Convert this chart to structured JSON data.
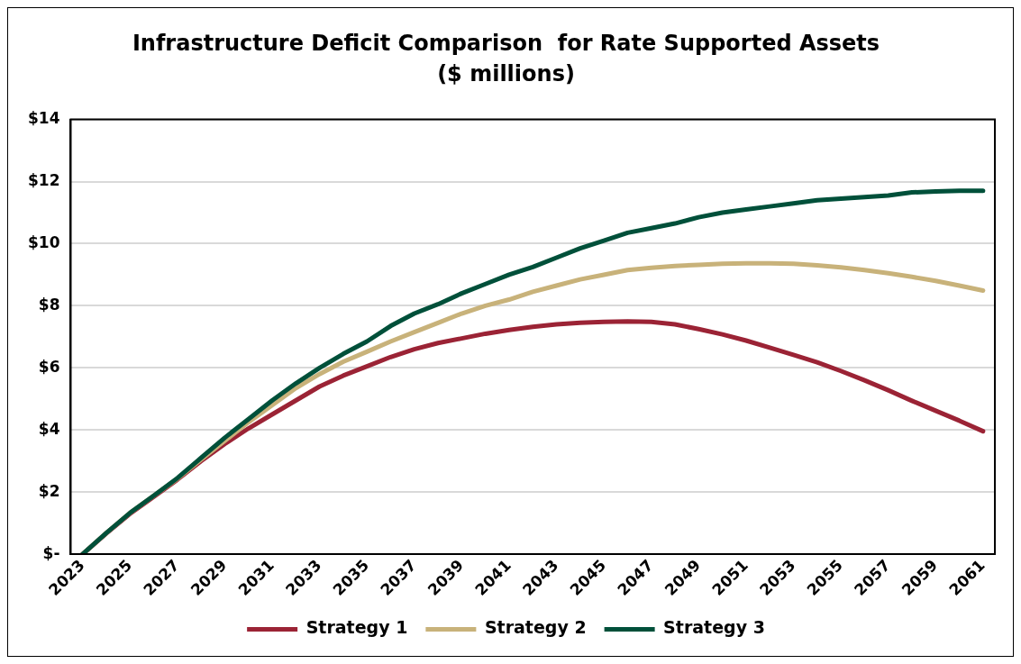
{
  "chart_data": {
    "type": "line",
    "title": "Infrastructure Deficit Comparison  for Rate Supported Assets",
    "subtitle": "($ millions)",
    "categories": [
      "2023",
      null,
      "2025",
      null,
      "2027",
      null,
      "2029",
      null,
      "2031",
      null,
      "2033",
      null,
      "2035",
      null,
      "2037",
      null,
      "2039",
      null,
      "2041",
      null,
      "2043",
      null,
      "2045",
      null,
      "2047",
      null,
      "2049",
      null,
      "2051",
      null,
      "2053",
      null,
      "2055",
      null,
      "2057",
      null,
      "2059",
      null,
      "2061"
    ],
    "series": [
      {
        "name": "Strategy 1",
        "color": "#9b2335",
        "values": [
          0,
          0.67,
          1.3,
          1.85,
          2.4,
          3.0,
          3.55,
          4.05,
          4.5,
          4.95,
          5.4,
          5.75,
          6.05,
          6.35,
          6.6,
          6.8,
          6.95,
          7.1,
          7.22,
          7.32,
          7.4,
          7.45,
          7.48,
          7.5,
          7.48,
          7.4,
          7.25,
          7.08,
          6.88,
          6.65,
          6.42,
          6.18,
          5.9,
          5.6,
          5.28,
          4.94,
          4.62,
          4.3,
          3.96
        ]
      },
      {
        "name": "Strategy 2",
        "color": "#c8b27a",
        "values": [
          0,
          0.68,
          1.33,
          1.88,
          2.43,
          3.05,
          3.65,
          4.25,
          4.8,
          5.35,
          5.8,
          6.2,
          6.52,
          6.85,
          7.15,
          7.45,
          7.75,
          8.0,
          8.2,
          8.45,
          8.65,
          8.85,
          9.0,
          9.15,
          9.22,
          9.28,
          9.32,
          9.35,
          9.37,
          9.37,
          9.35,
          9.3,
          9.24,
          9.15,
          9.05,
          8.93,
          8.8,
          8.65,
          8.49
        ]
      },
      {
        "name": "Strategy 3",
        "color": "#00503a",
        "values": [
          0,
          0.68,
          1.33,
          1.88,
          2.45,
          3.1,
          3.75,
          4.35,
          4.95,
          5.5,
          6.0,
          6.45,
          6.85,
          7.35,
          7.75,
          8.05,
          8.4,
          8.7,
          9.0,
          9.25,
          9.55,
          9.85,
          10.1,
          10.35,
          10.5,
          10.65,
          10.85,
          11.0,
          11.1,
          11.2,
          11.3,
          11.4,
          11.45,
          11.5,
          11.55,
          11.65,
          11.68,
          11.7,
          11.7
        ]
      }
    ],
    "ylim": [
      0,
      14
    ],
    "yticks": [
      {
        "value": 0,
        "label": "$-"
      },
      {
        "value": 2,
        "label": "$2"
      },
      {
        "value": 4,
        "label": "$4"
      },
      {
        "value": 6,
        "label": "$6"
      },
      {
        "value": 8,
        "label": "$8"
      },
      {
        "value": 10,
        "label": "$10"
      },
      {
        "value": 12,
        "label": "$12"
      },
      {
        "value": 14,
        "label": "$14"
      }
    ],
    "grid": "y",
    "legend": "bottom",
    "marker": "none",
    "line_style": "solid"
  }
}
